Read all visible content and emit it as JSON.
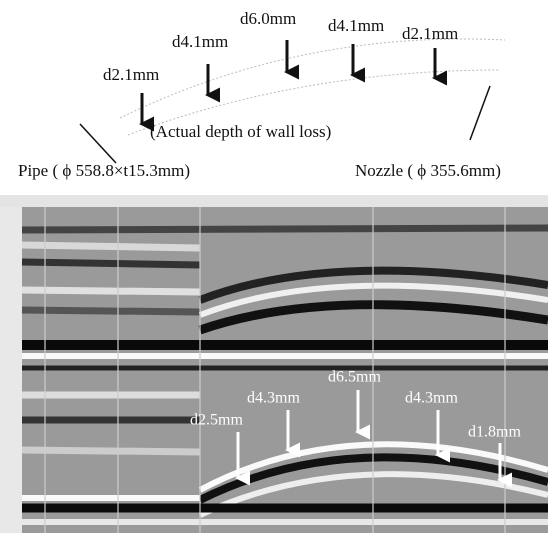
{
  "top_labels": [
    "d2.1mm",
    "d4.1mm",
    "d6.0mm",
    "d4.1mm",
    "d2.1mm"
  ],
  "caption": "(Actual depth of wall loss)",
  "pipe_label": "Pipe ( ϕ 558.8×t15.3mm)",
  "nozzle_label": "Nozzle ( ϕ 355.6mm)",
  "image_labels": [
    "d2.5mm",
    "d4.3mm",
    "d6.5mm",
    "d4.3mm",
    "d1.8mm"
  ]
}
